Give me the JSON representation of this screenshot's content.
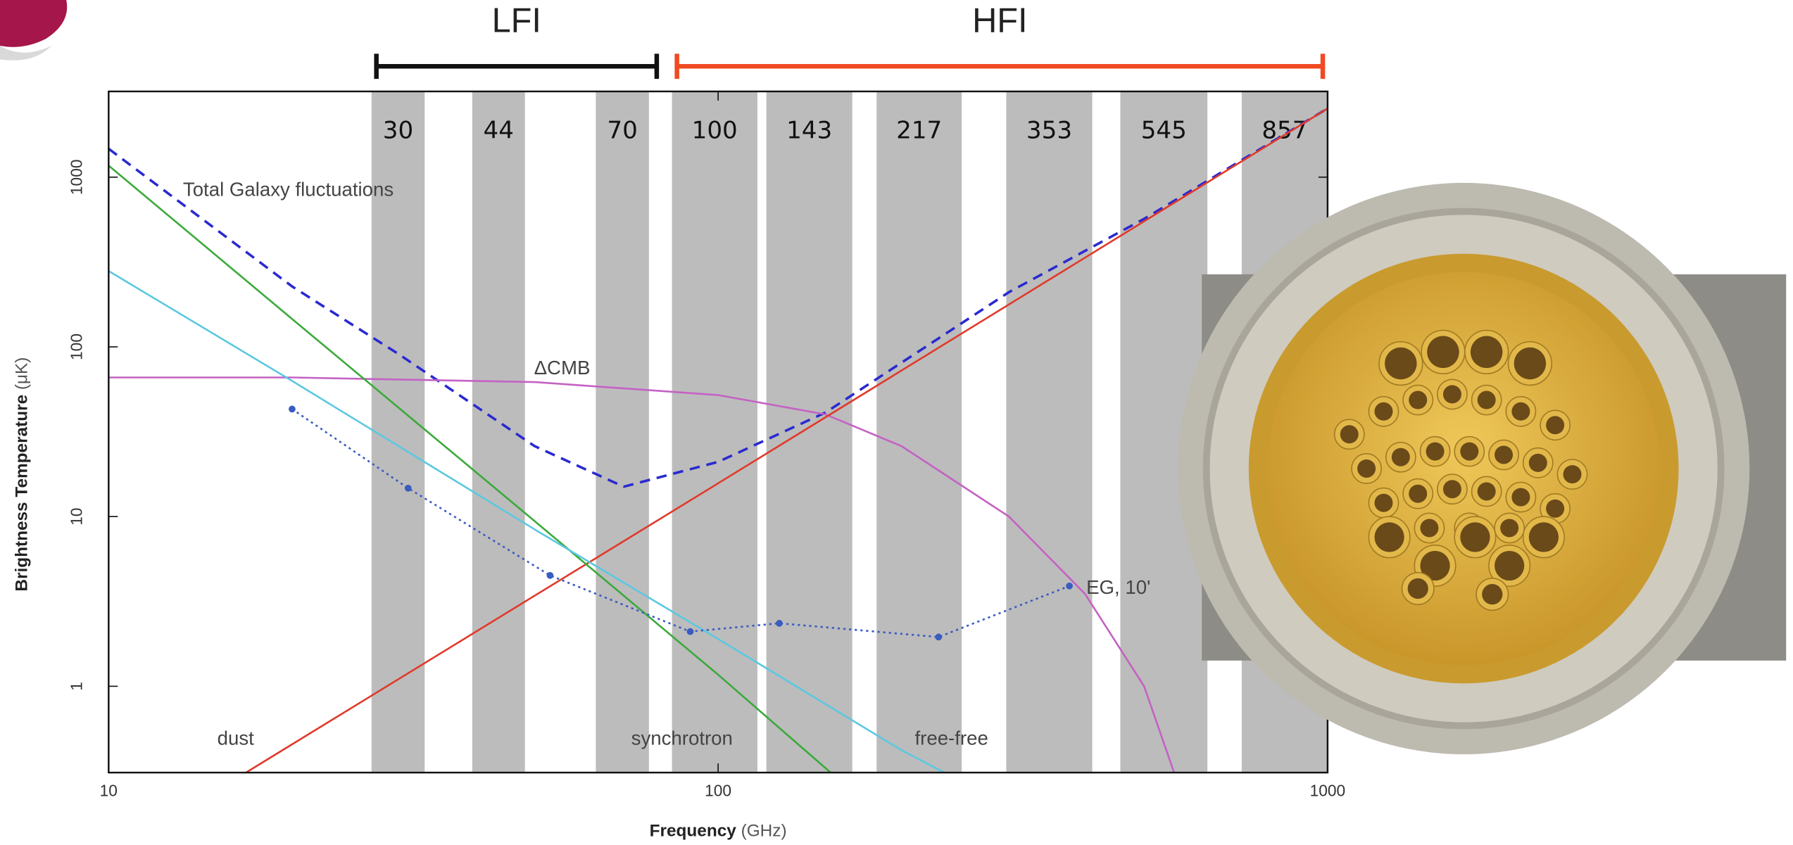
{
  "chart_data": {
    "type": "line",
    "x_label": "Frequency",
    "x_unit": "(GHz)",
    "y_label": "Brightness Temperature",
    "y_unit": "(μK)",
    "log_x": true,
    "log_y": true,
    "xlim": [
      10,
      1000
    ],
    "ylim": [
      0.31,
      3200
    ],
    "xticks": [
      10,
      100,
      1000
    ],
    "yticks": [
      1,
      10,
      100,
      1000
    ],
    "band_color": "#bcbcbc",
    "bands": [
      {
        "label": "30",
        "range": [
          27,
          33
        ]
      },
      {
        "label": "44",
        "range": [
          39.5,
          48.2
        ]
      },
      {
        "label": "70",
        "range": [
          63,
          77
        ]
      },
      {
        "label": "100",
        "range": [
          84,
          116
        ]
      },
      {
        "label": "143",
        "range": [
          120,
          166
        ]
      },
      {
        "label": "217",
        "range": [
          182,
          251
        ]
      },
      {
        "label": "353",
        "range": [
          297,
          411
        ]
      },
      {
        "label": "545",
        "range": [
          457,
          635
        ]
      },
      {
        "label": "857",
        "range": [
          723,
          1000
        ]
      }
    ],
    "instruments": [
      {
        "label": "LFI",
        "range": [
          27.5,
          79.3
        ],
        "color": "#111111"
      },
      {
        "label": "HFI",
        "range": [
          85.6,
          982
        ],
        "color": "#f04a22"
      }
    ],
    "series": [
      {
        "name": "Total Galaxy fluctuations",
        "color": "#2a2ad0",
        "style": "dashed",
        "x": [
          10,
          20,
          30,
          50,
          70,
          100,
          150,
          300,
          500,
          1000
        ],
        "values": [
          1470,
          227,
          90,
          26,
          15,
          21,
          41,
          210,
          568,
          2540
        ]
      },
      {
        "name": "ΔCMB",
        "color": "#c462c4",
        "style": "solid",
        "x": [
          10,
          20,
          50,
          100,
          150,
          200,
          300,
          400,
          500,
          560
        ],
        "values": [
          66,
          66,
          62,
          52,
          40,
          26,
          10,
          3.5,
          1,
          0.31
        ]
      },
      {
        "name": "dust",
        "color": "#e03a2a",
        "style": "solid",
        "x": [
          16.8,
          100,
          1000
        ],
        "values": [
          0.31,
          15.7,
          2540
        ]
      },
      {
        "name": "synchrotron",
        "color": "#3aaa3a",
        "style": "solid",
        "x": [
          10,
          20,
          50,
          100,
          153
        ],
        "values": [
          1170,
          146,
          9.4,
          1.17,
          0.31
        ]
      },
      {
        "name": "free-free",
        "color": "#5cc8e0",
        "style": "solid",
        "x": [
          10,
          20,
          50,
          100,
          200,
          235
        ],
        "values": [
          280,
          63,
          8.4,
          1.9,
          0.42,
          0.31
        ]
      },
      {
        "name": "EG, 10'",
        "color": "#3a5cc0",
        "style": "dotted",
        "markers": true,
        "x": [
          20,
          31,
          53,
          90,
          126,
          230,
          377
        ],
        "values": [
          43,
          14.7,
          4.5,
          2.1,
          2.35,
          1.95,
          3.9
        ]
      }
    ]
  }
}
